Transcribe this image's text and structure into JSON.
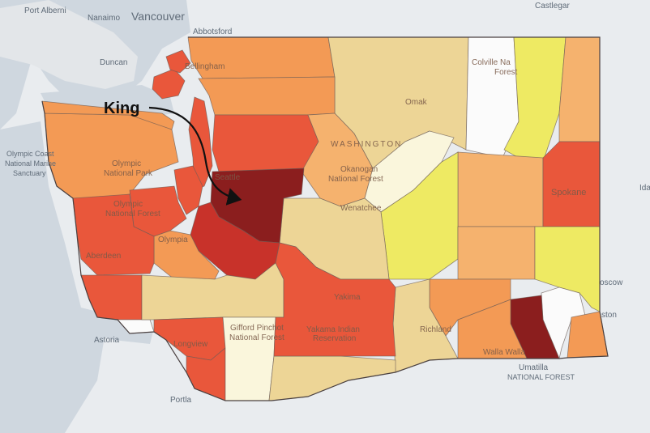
{
  "map": {
    "annotation": {
      "label": "King"
    },
    "basemap_labels": {
      "port_alberni": "Port Alberni",
      "nanaimo": "Nanaimo",
      "vancouver": "Vancouver",
      "castlegar": "Castlegar",
      "abbotsford": "Abbotsford",
      "duncan": "Duncan",
      "olympic_coast_1": "Olympic Coast",
      "olympic_coast_2": "National Marine",
      "olympic_coast_3": "Sanctuary",
      "ida": "Ida",
      "astoria": "Astoria",
      "portland": "Portla",
      "umatilla_1": "Umatilla",
      "umatilla_2": "NATIONAL FOREST",
      "moscow": "oscow",
      "lewiston": "ston"
    },
    "overlay_labels": {
      "washington": "WASHINGTON",
      "colville_1": "Colville Na",
      "colville_2": "Forest",
      "okanogan_1": "Okanogan",
      "okanogan_2": "National Forest",
      "wenatchee": "Wenatchee",
      "spokane": "Spokane",
      "yakima": "Yakima",
      "yakama_1": "Yakama Indian",
      "yakama_2": "Reservation",
      "walla_walla": "Walla Walla",
      "richland": "Richland",
      "olympic_np_1": "Olympic",
      "olympic_np_2": "National Park",
      "olympic_nf_1": "Olympic",
      "olympic_nf_2": "National Forest",
      "aberdeen": "Aberdeen",
      "olympia": "Olympia",
      "seattle": "Seattle",
      "bellingham": "Bellingham",
      "omak": "Omak",
      "gifford_1": "Gifford Pinchot",
      "gifford_2": "National Forest",
      "longview": "Longview"
    },
    "colors": {
      "darkest": "#8b1e1e",
      "dark_red": "#c8322a",
      "red_orange": "#e9573b",
      "orange": "#f39a55",
      "light_orange": "#f5b26e",
      "tan": "#edd596",
      "yellow": "#eeea63",
      "pale_yellow": "#faf6dc",
      "white": "#fbfbfb",
      "water": "#cfd7df",
      "land": "#e9ecef"
    }
  }
}
